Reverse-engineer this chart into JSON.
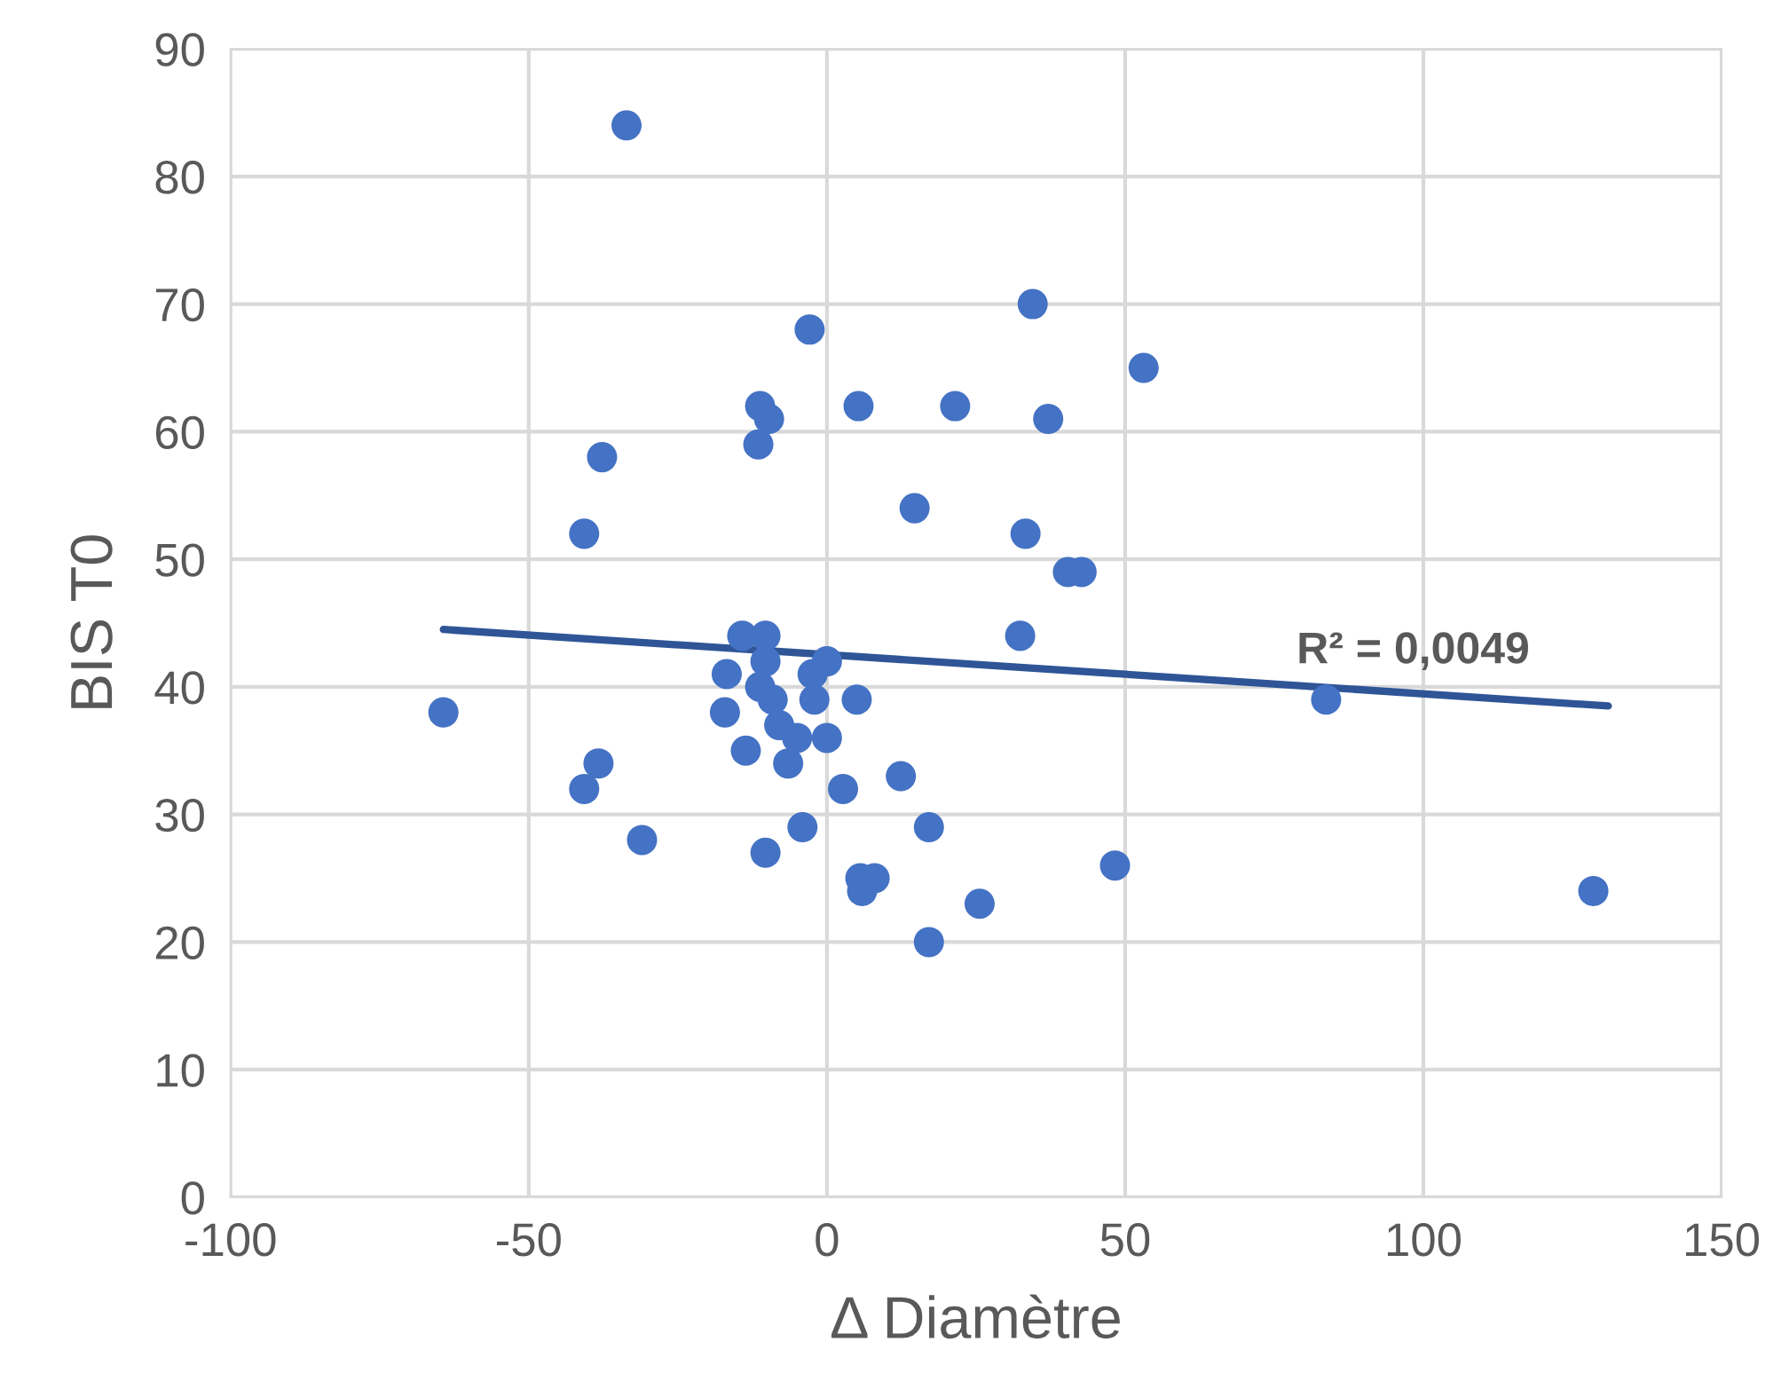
{
  "chart_data": {
    "type": "scatter",
    "xlabel": "Δ Diamètre",
    "ylabel": "BIS T0",
    "xlim": [
      -100,
      150
    ],
    "xticks": [
      -100,
      -50,
      0,
      50,
      100,
      150
    ],
    "ylim": [
      0,
      90
    ],
    "yticks": [
      0,
      10,
      20,
      30,
      40,
      50,
      60,
      70,
      80,
      90
    ],
    "grid": true,
    "annotations": [
      "R² = 0,0049"
    ],
    "series": [
      {
        "marker": "circle",
        "color": "#4472c4",
        "x": [
          -64.3,
          -33.6,
          -40.7,
          -38.3,
          -31,
          -40.7,
          -37.7,
          -11.5,
          -11.2,
          -9.7,
          -2.9,
          -14.2,
          -10.3,
          -16.8,
          -10.3,
          -17.1,
          -11.2,
          -9.1,
          -8,
          -13.6,
          -5,
          -6.5,
          -2.4,
          0,
          -2.1,
          0,
          5,
          2.7,
          12.4,
          -4.1,
          -10.3,
          17.1,
          5.6,
          8,
          5.9,
          17.1,
          25.6,
          5.3,
          21.5,
          14.7,
          34.5,
          37.1,
          53.1,
          33.3,
          40.4,
          42.7,
          32.4,
          48.3,
          83.7,
          128.5
        ],
        "values": [
          38,
          84,
          32,
          34,
          28,
          52,
          58,
          59,
          62,
          61,
          68,
          44,
          44,
          41,
          42,
          38,
          40,
          39,
          37,
          35,
          36,
          34,
          41,
          42,
          39,
          36,
          39,
          32,
          33,
          29,
          27,
          29,
          25,
          25,
          24,
          20,
          23,
          62,
          62,
          54,
          70,
          61,
          65,
          52,
          49,
          49,
          44,
          26,
          39,
          24
        ]
      },
      {
        "type": "line",
        "color": "#2f5597",
        "x": [
          -64.3,
          131
        ],
        "values": [
          44.5,
          38.5
        ]
      }
    ]
  }
}
